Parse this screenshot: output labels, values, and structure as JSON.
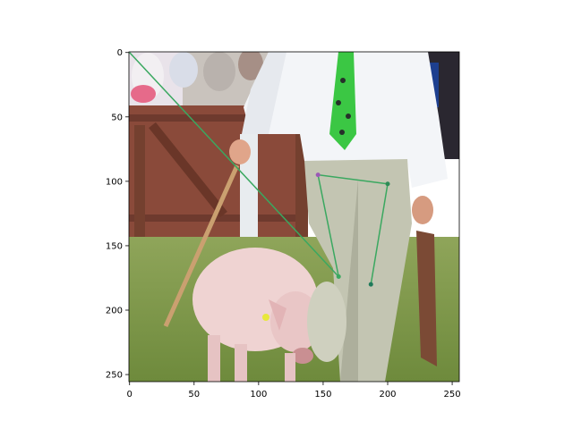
{
  "chart_data": {
    "type": "scatter",
    "title": "",
    "xlabel": "",
    "ylabel": "",
    "xlim": [
      -0.5,
      255.5
    ],
    "ylim": [
      255.5,
      -0.5
    ],
    "y_inverted": true,
    "grid": false,
    "x_ticks": [
      0,
      50,
      100,
      150,
      200,
      250
    ],
    "y_ticks": [
      0,
      50,
      100,
      150,
      200,
      250
    ],
    "x_tick_labels": [
      "0",
      "50",
      "100",
      "150",
      "200",
      "250"
    ],
    "y_tick_labels": [
      "0",
      "50",
      "100",
      "150",
      "200",
      "250"
    ],
    "background_image": "photo-man-in-white-shirt-and-green-tie-walking-pig-on-grass",
    "line_color": "#3aa860",
    "segments": [
      {
        "from": [
          0,
          0
        ],
        "to": [
          162,
          174
        ]
      },
      {
        "from": [
          162,
          174
        ],
        "to": [
          146,
          95
        ]
      },
      {
        "from": [
          146,
          95
        ],
        "to": [
          200,
          102
        ]
      },
      {
        "from": [
          200,
          102
        ],
        "to": [
          187,
          180
        ]
      }
    ],
    "points": [
      {
        "x": 146,
        "y": 95,
        "color": "#9b59b6"
      },
      {
        "x": 200,
        "y": 102,
        "color": "#2e8b57"
      },
      {
        "x": 162,
        "y": 174,
        "color": "#3aa860"
      },
      {
        "x": 187,
        "y": 180,
        "color": "#1f7a5a"
      }
    ]
  }
}
